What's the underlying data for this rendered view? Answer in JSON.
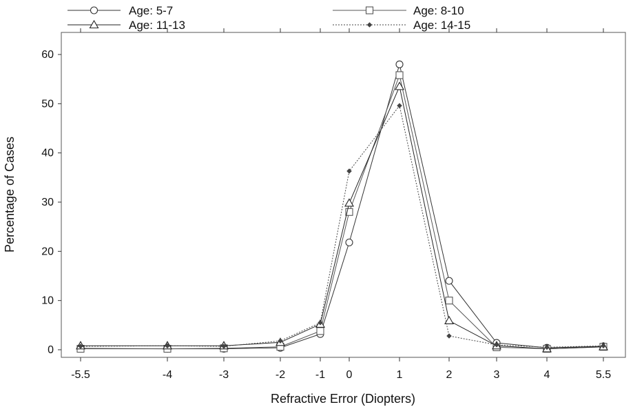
{
  "chart_data": {
    "type": "line",
    "xlabel": "Refractive Error (Diopters)",
    "ylabel": "Percentage of Cases",
    "x": [
      -5.5,
      -4,
      -3,
      -2,
      -1,
      0,
      1,
      2,
      3,
      4,
      5.5
    ],
    "x_tick_labels": [
      "-5.5",
      "-4",
      "-3",
      "-2",
      "-1",
      "0",
      "1",
      "2",
      "3",
      "4",
      "5.5"
    ],
    "y_ticks": [
      0,
      10,
      20,
      30,
      40,
      50,
      60
    ],
    "y_tick_labels": [
      "0",
      "10",
      "20",
      "30",
      "40",
      "50",
      "60"
    ],
    "ylim": [
      -1,
      62
    ],
    "grid": false,
    "legend_position": "top",
    "series": [
      {
        "name": "Age: 5-7",
        "marker": "circle",
        "color": "#333333",
        "values": [
          0.3,
          0.2,
          0.2,
          0.4,
          3.2,
          21.8,
          58.0,
          14.0,
          1.4,
          0.4,
          0.7
        ]
      },
      {
        "name": "Age: 8-10",
        "marker": "square",
        "color": "#555555",
        "values": [
          0.2,
          0.2,
          0.3,
          0.6,
          3.8,
          28.0,
          55.8,
          10.0,
          0.5,
          0.2,
          0.6
        ]
      },
      {
        "name": "Age: 11-13",
        "marker": "triangle",
        "color": "#222222",
        "values": [
          0.8,
          0.8,
          0.8,
          1.5,
          5.2,
          29.8,
          53.5,
          5.9,
          0.8,
          0.2,
          0.6
        ]
      },
      {
        "name": "Age: 14-15",
        "marker": "diamond",
        "color": "#444444",
        "values": [
          0.7,
          0.8,
          0.7,
          1.8,
          5.5,
          36.3,
          49.6,
          2.8,
          1.0,
          0.5,
          0.8
        ]
      }
    ]
  }
}
